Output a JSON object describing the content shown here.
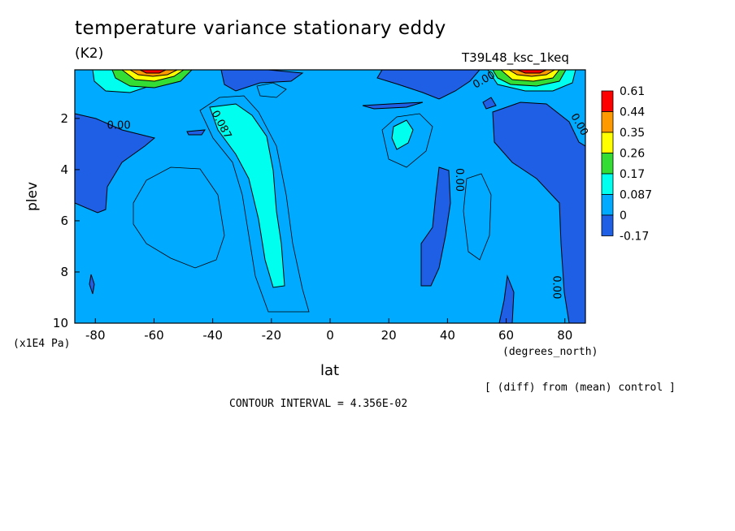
{
  "header": {
    "title": "temperature variance stationary eddy",
    "units": "(K2)",
    "run_id": "T39L48_ksc_1keq"
  },
  "footer": {
    "comparison": "[ (diff) from (mean) control ]",
    "contour_interval": "CONTOUR INTERVAL = 4.356E-02"
  },
  "chart_data": {
    "type": "heatmap",
    "xlabel": "lat",
    "x_unit_label": "(degrees_north)",
    "ylabel": "plev",
    "y_unit_label": "(x1E4 Pa)",
    "xlim": [
      -87,
      87
    ],
    "ylim": [
      10,
      0.1
    ],
    "y_reversed": true,
    "x_ticks": [
      -80,
      -60,
      -40,
      -20,
      0,
      20,
      40,
      60,
      80
    ],
    "y_ticks": [
      2,
      4,
      6,
      8,
      10
    ],
    "colorbar": {
      "labels": [
        "0.61",
        "0.44",
        "0.35",
        "0.26",
        "0.17",
        "0.087",
        "0",
        "-0.17"
      ],
      "colors": [
        "#ff0000",
        "#ff9900",
        "#ffff00",
        "#33dd33",
        "#00ffee",
        "#00aaff",
        "#1f5fe6"
      ]
    },
    "contour_labels": [
      {
        "text": "0.00",
        "lat": -72,
        "plev": 2.4
      },
      {
        "text": "0.087",
        "lat": -38,
        "plev": 2.3
      },
      {
        "text": "0.00",
        "lat": 53,
        "plev": 0.6
      },
      {
        "text": "0.00",
        "lat": 43,
        "plev": 4.4
      },
      {
        "text": "0.00",
        "lat": 84,
        "plev": 2.3
      },
      {
        "text": "0.00",
        "lat": 76,
        "plev": 8.6
      }
    ],
    "regions": [
      {
        "level": "-0.17 to 0",
        "lat": [
          -87,
          -72
        ],
        "plev": [
          1.5,
          5.8
        ],
        "note": "negative area at southern high latitudes"
      },
      {
        "level": "-0.17 to 0",
        "lat": [
          -60,
          -25
        ],
        "plev": [
          0.1,
          1.0
        ],
        "note": "upper-level negative area"
      },
      {
        "level": "-0.17 to 0",
        "lat": [
          20,
          60
        ],
        "plev": [
          0.1,
          1.5
        ],
        "note": "upper-level negative area"
      },
      {
        "level": "-0.17 to 0",
        "lat": [
          30,
          45
        ],
        "plev": [
          4.0,
          8.6
        ],
        "note": "negative tongue"
      },
      {
        "level": "-0.17 to 0",
        "lat": [
          62,
          87
        ],
        "plev": [
          1.2,
          10
        ],
        "note": "northern high-latitude negative area"
      },
      {
        "level": "0.087 to 0.17",
        "lat": [
          -35,
          -18
        ],
        "plev": [
          1.5,
          8.6
        ],
        "note": "slanted positive band"
      },
      {
        "level": "0.087 to 0.17",
        "lat": [
          23,
          30
        ],
        "plev": [
          2.0,
          3.2
        ],
        "note": "small positive cell"
      },
      {
        "level": "0.44 to 0.61",
        "lat": [
          -80,
          -48
        ],
        "plev": [
          0.1,
          1.0
        ],
        "note": "stratospheric maximum"
      },
      {
        "level": "0.44 to 0.61",
        "lat": [
          56,
          86
        ],
        "plev": [
          0.1,
          0.8
        ],
        "note": "stratospheric maximum"
      }
    ]
  }
}
